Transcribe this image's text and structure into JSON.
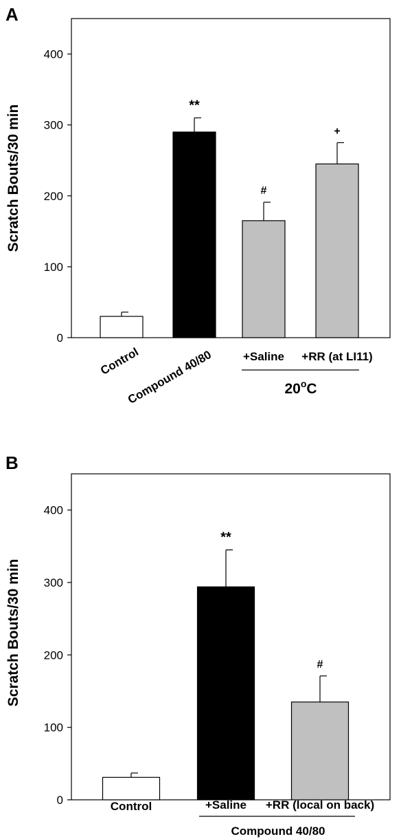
{
  "chart_data": [
    {
      "panel_label": "A",
      "type": "bar",
      "ylabel": "Scratch Bouts/30 min",
      "ylim": [
        0,
        450
      ],
      "yticks": [
        0,
        100,
        200,
        300,
        400
      ],
      "bars": [
        {
          "label": "Control",
          "value": 30,
          "error": 6,
          "color": "#ffffff",
          "significance": ""
        },
        {
          "label": "Compound 40/80",
          "value": 290,
          "error": 20,
          "color": "#000000",
          "significance": "**"
        },
        {
          "label": "+Saline",
          "value": 165,
          "error": 26,
          "color": "#c0c0c0",
          "significance": "#"
        },
        {
          "label": "+RR (at LI11)",
          "value": 245,
          "error": 30,
          "color": "#c0c0c0",
          "significance": "+"
        }
      ],
      "group_label": {
        "base": "20",
        "superscript": "o",
        "suffix": "C"
      }
    },
    {
      "panel_label": "B",
      "type": "bar",
      "ylabel": "Scratch Bouts/30 min",
      "ylim": [
        0,
        450
      ],
      "yticks": [
        0,
        100,
        200,
        300,
        400
      ],
      "bars": [
        {
          "label": "Control",
          "value": 31,
          "error": 6,
          "color": "#ffffff",
          "significance": ""
        },
        {
          "label": "+Saline",
          "value": 294,
          "error": 51,
          "color": "#000000",
          "significance": "**"
        },
        {
          "label": "+RR (local on back)",
          "value": 135,
          "error": 36,
          "color": "#c0c0c0",
          "significance": "#"
        }
      ],
      "group_label": {
        "base": "Compound 40/80",
        "superscript": "",
        "suffix": ""
      }
    }
  ]
}
